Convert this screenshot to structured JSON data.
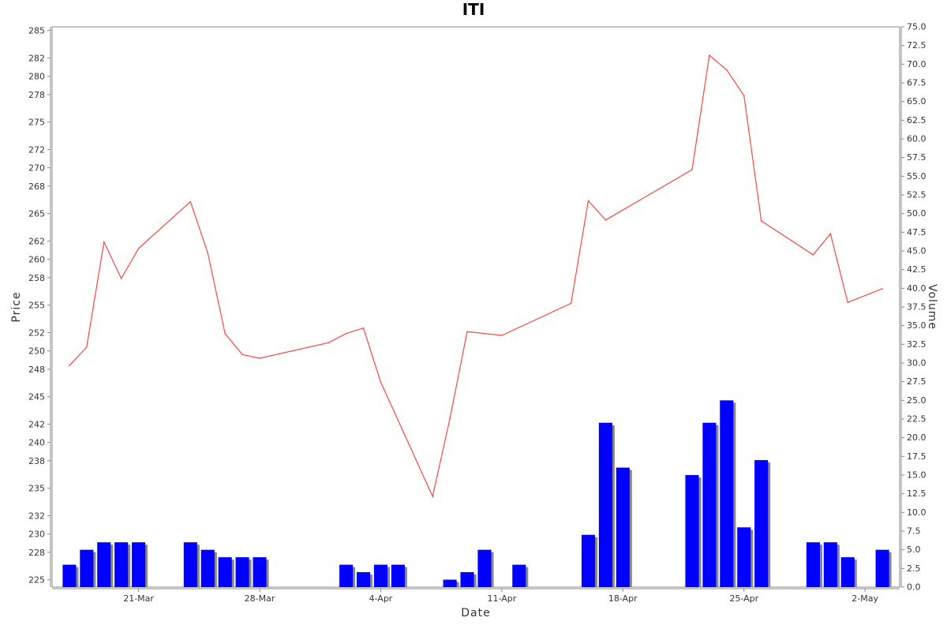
{
  "chart_data": {
    "type": "line",
    "title": "ITI",
    "xlabel": "Date",
    "ylabel": "Price",
    "y2label": "Volume",
    "grid": false,
    "price_axis": {
      "range": [
        224.2,
        285.4
      ],
      "ticks": [
        225,
        228,
        230,
        232,
        235,
        238,
        240,
        242,
        245,
        248,
        250,
        252,
        255,
        258,
        260,
        262,
        265,
        268,
        270,
        272,
        275,
        278,
        280,
        282,
        285
      ]
    },
    "volume_axis": {
      "range": [
        0,
        75
      ],
      "ticks": [
        "0.0",
        "2.5",
        "5.0",
        "7.5",
        "10.0",
        "12.5",
        "15.0",
        "17.5",
        "20.0",
        "22.5",
        "25.0",
        "27.5",
        "30.0",
        "32.5",
        "35.0",
        "37.5",
        "40.0",
        "42.5",
        "45.0",
        "47.5",
        "50.0",
        "52.5",
        "55.0",
        "57.5",
        "60.0",
        "62.5",
        "65.0",
        "67.5",
        "70.0",
        "72.5",
        "75.0"
      ]
    },
    "x_axis": {
      "start": "2016-03-16",
      "end": "2016-05-04",
      "ticks": [
        {
          "label": "21-Mar",
          "date": "2016-03-21"
        },
        {
          "label": "28-Mar",
          "date": "2016-03-28"
        },
        {
          "label": "4-Apr",
          "date": "2016-04-04"
        },
        {
          "label": "11-Apr",
          "date": "2016-04-11"
        },
        {
          "label": "18-Apr",
          "date": "2016-04-18"
        },
        {
          "label": "25-Apr",
          "date": "2016-04-25"
        },
        {
          "label": "2-May",
          "date": "2016-05-02"
        }
      ]
    },
    "series": [
      {
        "name": "Price",
        "kind": "line",
        "color": "#ff4444",
        "points": [
          [
            "2016-03-17",
            248.4
          ],
          [
            "2016-03-18",
            250.4
          ],
          [
            "2016-03-19",
            261.9
          ],
          [
            "2016-03-20",
            257.9
          ],
          [
            "2016-03-21",
            261.2
          ],
          [
            "2016-03-24",
            266.3
          ],
          [
            "2016-03-25",
            260.7
          ],
          [
            "2016-03-26",
            251.9
          ],
          [
            "2016-03-27",
            249.6
          ],
          [
            "2016-03-28",
            249.2
          ],
          [
            "2016-04-01",
            250.9
          ],
          [
            "2016-04-02",
            251.9
          ],
          [
            "2016-04-03",
            252.5
          ],
          [
            "2016-04-04",
            246.6
          ],
          [
            "2016-04-07",
            234.1
          ],
          [
            "2016-04-08",
            242.6
          ],
          [
            "2016-04-09",
            252.1
          ],
          [
            "2016-04-11",
            251.7
          ],
          [
            "2016-04-15",
            255.2
          ],
          [
            "2016-04-16",
            266.4
          ],
          [
            "2016-04-17",
            264.3
          ],
          [
            "2016-04-22",
            269.8
          ],
          [
            "2016-04-23",
            282.3
          ],
          [
            "2016-04-24",
            280.7
          ],
          [
            "2016-04-25",
            277.9
          ],
          [
            "2016-04-26",
            264.2
          ],
          [
            "2016-04-29",
            260.5
          ],
          [
            "2016-04-30",
            262.8
          ],
          [
            "2016-05-01",
            255.3
          ],
          [
            "2016-05-03",
            256.8
          ]
        ]
      },
      {
        "name": "Volume",
        "kind": "bar",
        "color": "#0000ff",
        "shadow_color": "#888888",
        "points": [
          [
            "2016-03-17",
            3
          ],
          [
            "2016-03-18",
            5
          ],
          [
            "2016-03-19",
            6
          ],
          [
            "2016-03-20",
            6
          ],
          [
            "2016-03-21",
            6
          ],
          [
            "2016-03-24",
            6
          ],
          [
            "2016-03-25",
            5
          ],
          [
            "2016-03-26",
            4
          ],
          [
            "2016-03-27",
            4
          ],
          [
            "2016-03-28",
            4
          ],
          [
            "2016-04-02",
            3
          ],
          [
            "2016-04-03",
            2
          ],
          [
            "2016-04-04",
            3
          ],
          [
            "2016-04-05",
            3
          ],
          [
            "2016-04-08",
            1
          ],
          [
            "2016-04-09",
            2
          ],
          [
            "2016-04-10",
            5
          ],
          [
            "2016-04-12",
            3
          ],
          [
            "2016-04-16",
            7
          ],
          [
            "2016-04-17",
            22
          ],
          [
            "2016-04-18",
            16
          ],
          [
            "2016-04-22",
            15
          ],
          [
            "2016-04-23",
            22
          ],
          [
            "2016-04-24",
            25
          ],
          [
            "2016-04-25",
            8
          ],
          [
            "2016-04-26",
            17
          ],
          [
            "2016-04-29",
            6
          ],
          [
            "2016-04-30",
            6
          ],
          [
            "2016-05-01",
            4
          ],
          [
            "2016-05-03",
            5
          ]
        ]
      }
    ]
  }
}
